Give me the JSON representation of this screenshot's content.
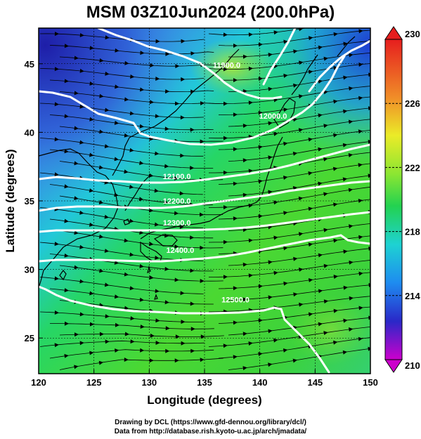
{
  "title": "MSM 03Z10Jun2024 (200.0hPa)",
  "axes": {
    "xlabel": "Longitude (degrees)",
    "ylabel": "Latitude  (degrees)",
    "xlim": [
      120,
      150
    ],
    "ylim": [
      22.4,
      47.6
    ],
    "xticks": [
      "120",
      "125",
      "130",
      "135",
      "140",
      "145",
      "150"
    ],
    "yticks": [
      "25",
      "30",
      "35",
      "40",
      "45"
    ],
    "grid": "on"
  },
  "colorbar": {
    "range": [
      210,
      230
    ],
    "labels": [
      "230",
      "226",
      "222",
      "218",
      "214",
      "210"
    ],
    "extend": "both",
    "colors": [
      "#cc00cc",
      "#2a28c8",
      "#1e8cf0",
      "#1ed2d2",
      "#23d250",
      "#8ce632",
      "#ebeb28",
      "#f08c28",
      "#e61e1e"
    ]
  },
  "contours": [
    {
      "label": "11900.0",
      "lon": 137.0,
      "lat": 44.7
    },
    {
      "label": "12000.0",
      "lon": 141.2,
      "lat": 41.0
    },
    {
      "label": "12100.0",
      "lon": 132.5,
      "lat": 36.6
    },
    {
      "label": "12200.0",
      "lon": 132.5,
      "lat": 34.8
    },
    {
      "label": "12300.0",
      "lon": 132.5,
      "lat": 33.2
    },
    {
      "label": "12400.0",
      "lon": 132.8,
      "lat": 31.2
    },
    {
      "label": "12500.0",
      "lon": 137.8,
      "lat": 27.6
    }
  ],
  "credits": {
    "line1": "Drawing by DCL (https://www.gfd-dennou.org/library/dcl/)",
    "line2": "Data from http://database.rish.kyoto-u.ac.jp/arch/jmadata/"
  }
}
